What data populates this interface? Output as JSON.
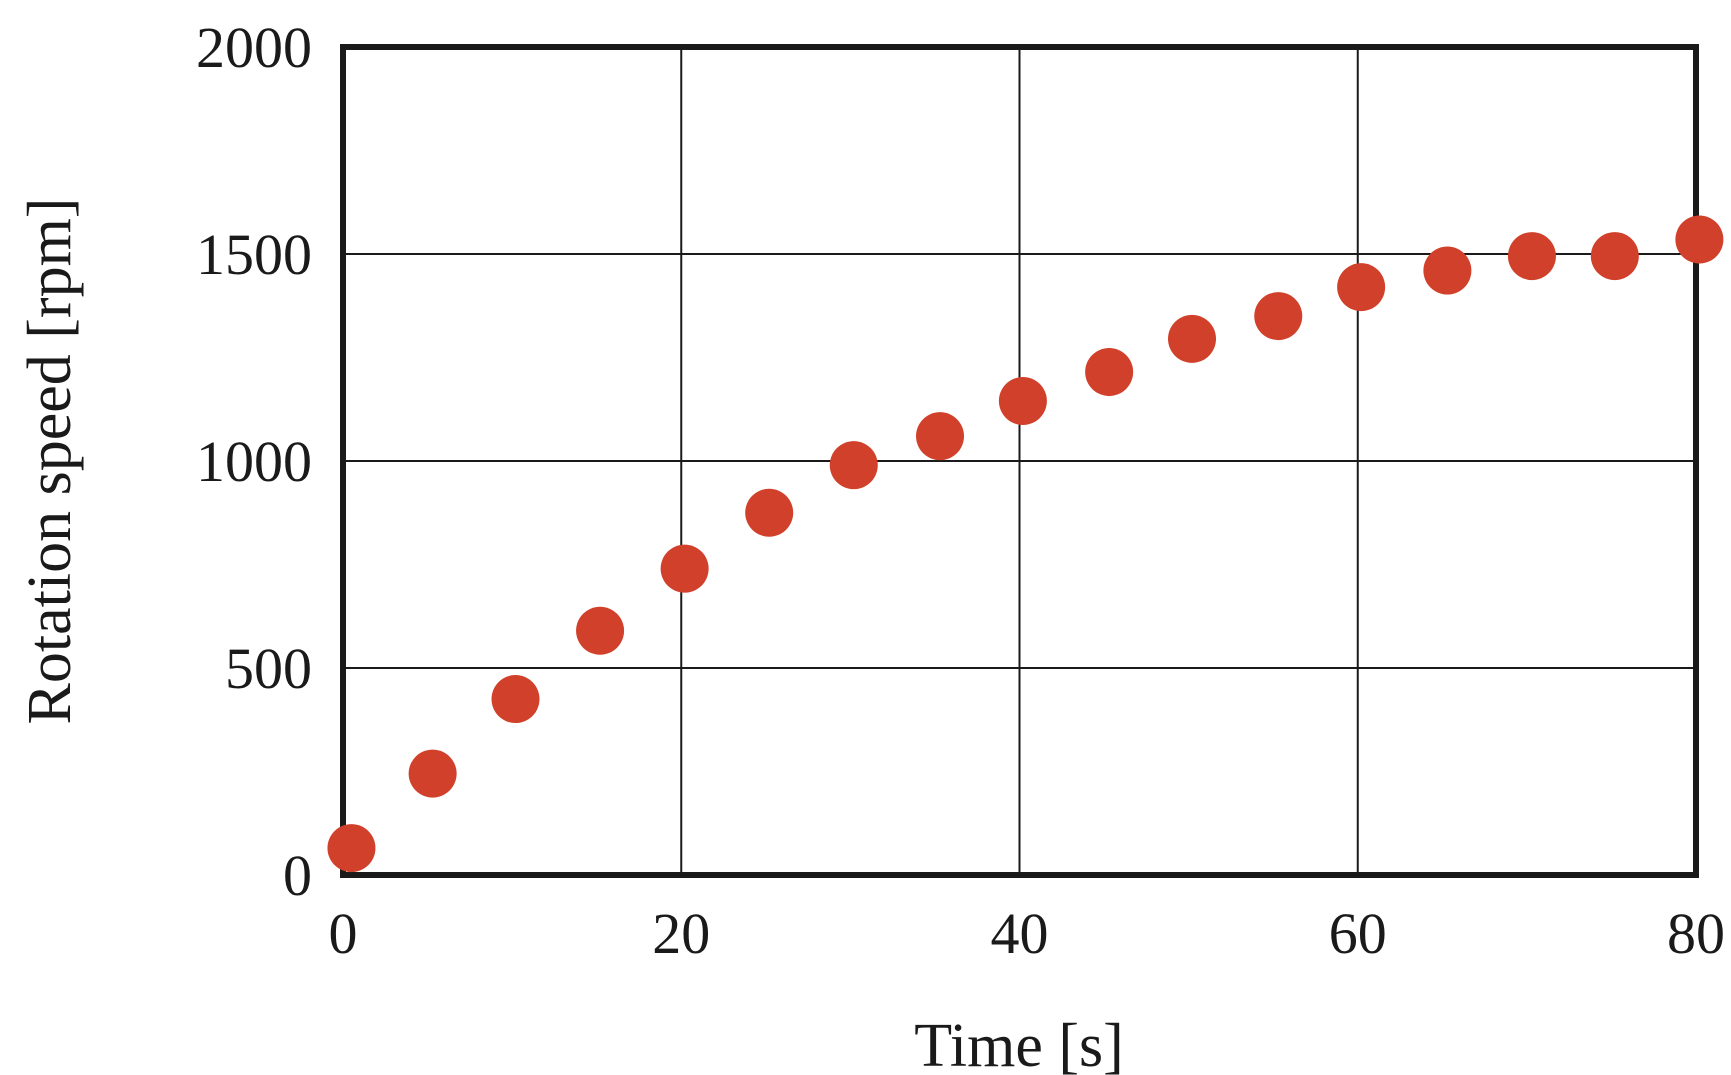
{
  "chart_data": {
    "type": "scatter",
    "title": "",
    "xlabel": "Time [s]",
    "ylabel": "Rotation speed [rpm]",
    "xlim": [
      0,
      80
    ],
    "ylim": [
      0,
      2000
    ],
    "xticks": [
      0,
      20,
      40,
      60,
      80
    ],
    "yticks": [
      0,
      500,
      1000,
      1500,
      2000
    ],
    "xtick_labels": [
      "0",
      "20",
      "40",
      "60",
      "80"
    ],
    "ytick_labels": [
      "0",
      "500",
      "1000",
      "1500",
      "2000"
    ],
    "grid": true,
    "legend": "none",
    "marker_color": "#d1402a",
    "series": [
      {
        "x": [
          0.5,
          5.3,
          10.2,
          15.2,
          20.2,
          25.2,
          30.2,
          35.3,
          40.2,
          45.3,
          50.2,
          55.3,
          60.2,
          65.3,
          70.3,
          75.2,
          80.2
        ],
        "y": [
          65,
          245,
          425,
          590,
          740,
          875,
          990,
          1060,
          1145,
          1215,
          1295,
          1350,
          1420,
          1460,
          1495,
          1495,
          1535
        ]
      }
    ]
  }
}
